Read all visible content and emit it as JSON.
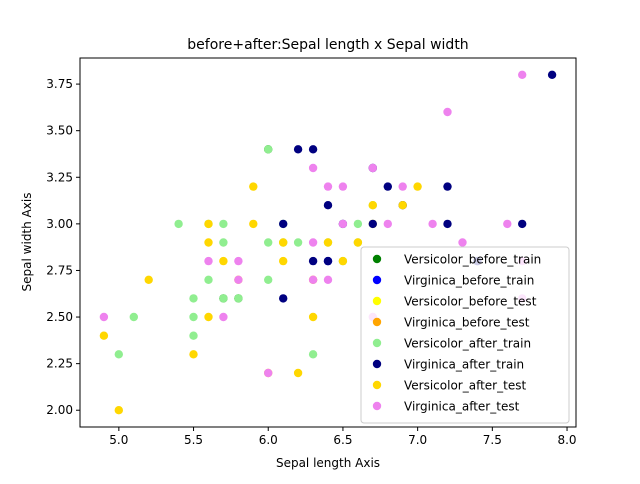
{
  "chart_data": {
    "type": "scatter",
    "title": "before+after:Sepal length x Sepal width",
    "xlabel": "Sepal length Axis",
    "ylabel": "Sepal width Axis",
    "xlim": [
      4.74,
      8.06
    ],
    "ylim": [
      1.91,
      3.89
    ],
    "xticks": [
      "5.0",
      "5.5",
      "6.0",
      "6.5",
      "7.0",
      "7.5",
      "8.0"
    ],
    "xtick_values": [
      5.0,
      5.5,
      6.0,
      6.5,
      7.0,
      7.5,
      8.0
    ],
    "yticks": [
      "2.00",
      "2.25",
      "2.50",
      "2.75",
      "3.00",
      "3.25",
      "3.50",
      "3.75"
    ],
    "ytick_values": [
      2.0,
      2.25,
      2.5,
      2.75,
      3.0,
      3.25,
      3.5,
      3.75
    ],
    "grid": false,
    "legend_position": "lower-right",
    "series": [
      {
        "name": "Versicolor_before_train",
        "color": "#008000",
        "points": [
          [
            6.0,
            3.4
          ],
          [
            5.7,
            2.6
          ],
          [
            5.8,
            2.6
          ]
        ]
      },
      {
        "name": "Virginica_before_train",
        "color": "#0000ff",
        "points": [
          [
            7.4,
            2.8
          ],
          [
            6.4,
            2.8
          ]
        ]
      },
      {
        "name": "Versicolor_before_test",
        "color": "#ffff00",
        "points": [
          [
            6.7,
            3.0
          ]
        ]
      },
      {
        "name": "Virginica_before_test",
        "color": "#ffa500",
        "points": [
          [
            6.3,
            2.7
          ]
        ]
      },
      {
        "name": "Versicolor_after_train",
        "color": "#90ee90",
        "points": [
          [
            5.0,
            2.3
          ],
          [
            5.1,
            2.5
          ],
          [
            5.4,
            3.0
          ],
          [
            5.5,
            2.6
          ],
          [
            5.5,
            2.5
          ],
          [
            5.5,
            2.4
          ],
          [
            5.6,
            3.0
          ],
          [
            5.6,
            2.7
          ],
          [
            5.7,
            3.0
          ],
          [
            5.7,
            2.9
          ],
          [
            5.7,
            2.6
          ],
          [
            5.8,
            2.6
          ],
          [
            6.0,
            3.4
          ],
          [
            6.0,
            2.9
          ],
          [
            6.0,
            2.7
          ],
          [
            6.1,
            3.0
          ],
          [
            6.1,
            2.9
          ],
          [
            6.2,
            2.9
          ],
          [
            6.3,
            2.3
          ],
          [
            6.4,
            2.9
          ],
          [
            6.5,
            2.8
          ],
          [
            6.6,
            3.0
          ],
          [
            6.6,
            2.9
          ],
          [
            6.7,
            3.1
          ]
        ]
      },
      {
        "name": "Virginica_after_train",
        "color": "#000080",
        "points": [
          [
            6.1,
            3.0
          ],
          [
            6.1,
            2.6
          ],
          [
            6.2,
            3.4
          ],
          [
            6.3,
            3.4
          ],
          [
            6.3,
            2.8
          ],
          [
            6.4,
            3.1
          ],
          [
            6.4,
            2.8
          ],
          [
            6.5,
            3.0
          ],
          [
            6.7,
            3.3
          ],
          [
            6.7,
            3.0
          ],
          [
            6.8,
            3.2
          ],
          [
            6.9,
            3.1
          ],
          [
            7.2,
            3.2
          ],
          [
            7.2,
            3.0
          ],
          [
            7.4,
            2.8
          ],
          [
            7.7,
            3.0
          ],
          [
            7.9,
            3.8
          ]
        ]
      },
      {
        "name": "Versicolor_after_test",
        "color": "#ffd700",
        "points": [
          [
            4.9,
            2.4
          ],
          [
            5.0,
            2.0
          ],
          [
            5.2,
            2.7
          ],
          [
            5.5,
            2.3
          ],
          [
            5.6,
            3.0
          ],
          [
            5.6,
            2.9
          ],
          [
            5.6,
            2.5
          ],
          [
            5.7,
            2.8
          ],
          [
            5.8,
            2.7
          ],
          [
            5.9,
            3.2
          ],
          [
            5.9,
            3.0
          ],
          [
            6.0,
            2.2
          ],
          [
            6.1,
            2.9
          ],
          [
            6.1,
            2.8
          ],
          [
            6.2,
            2.2
          ],
          [
            6.3,
            2.5
          ],
          [
            6.4,
            2.9
          ],
          [
            6.5,
            2.8
          ],
          [
            6.6,
            2.9
          ],
          [
            6.7,
            3.1
          ],
          [
            6.9,
            3.1
          ],
          [
            7.0,
            3.2
          ]
        ]
      },
      {
        "name": "Virginica_after_test",
        "color": "#ee82ee",
        "points": [
          [
            4.9,
            2.5
          ],
          [
            5.6,
            2.8
          ],
          [
            5.7,
            2.5
          ],
          [
            5.8,
            2.8
          ],
          [
            5.8,
            2.7
          ],
          [
            6.0,
            2.2
          ],
          [
            6.3,
            3.3
          ],
          [
            6.3,
            2.9
          ],
          [
            6.3,
            2.7
          ],
          [
            6.4,
            3.2
          ],
          [
            6.4,
            2.7
          ],
          [
            6.5,
            3.2
          ],
          [
            6.5,
            3.0
          ],
          [
            6.7,
            3.3
          ],
          [
            6.7,
            2.5
          ],
          [
            6.8,
            3.0
          ],
          [
            6.9,
            3.2
          ],
          [
            7.1,
            3.0
          ],
          [
            7.2,
            3.6
          ],
          [
            7.3,
            2.9
          ],
          [
            7.6,
            3.0
          ],
          [
            7.7,
            3.8
          ],
          [
            7.7,
            2.8
          ],
          [
            7.7,
            2.6
          ]
        ]
      }
    ]
  }
}
